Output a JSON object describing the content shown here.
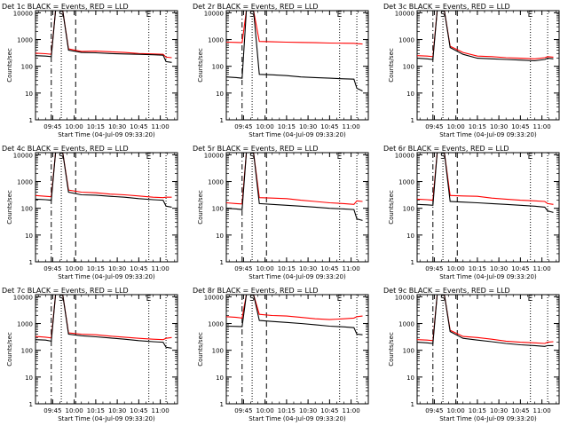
{
  "colors": {
    "events": "#000000",
    "lld": "#ff0000",
    "axis": "#000000",
    "background": "#ffffff"
  },
  "common": {
    "xlabel": "Start Time (04-Jul-09 09:33:20)",
    "ylabel": "Counts/sec",
    "xticks": [
      "09:45",
      "10:00",
      "10:15",
      "10:30",
      "10:45",
      "11:00"
    ],
    "yticks": [
      "1",
      "10",
      "100",
      "1000",
      "10000"
    ],
    "markers": [
      "S",
      "E"
    ]
  },
  "chart_data": [
    {
      "type": "line",
      "title": "Det 1c BLACK = Events, RED = LLD",
      "xlabel": "Start Time (04-Jul-09 09:33:20)",
      "ylabel": "Counts/sec",
      "xlim": [
        "09:33",
        "11:12"
      ],
      "ylim": [
        1,
        12000
      ],
      "yscale": "log",
      "x": [
        "09:33",
        "09:40",
        "09:44",
        "09:47",
        "09:52",
        "09:56",
        "10:05",
        "10:15",
        "10:25",
        "10:35",
        "10:45",
        "10:55",
        "11:02",
        "11:04",
        "11:08"
      ],
      "series": [
        {
          "name": "Events",
          "values": [
            250,
            240,
            230,
            12000,
            12000,
            400,
            330,
            320,
            300,
            290,
            280,
            270,
            260,
            150,
            140
          ]
        },
        {
          "name": "LLD",
          "values": [
            310,
            295,
            280,
            12000,
            12000,
            450,
            360,
            370,
            350,
            330,
            300,
            290,
            280,
            220,
            210
          ]
        }
      ]
    },
    {
      "type": "line",
      "title": "Det 2r BLACK = Events, RED = LLD",
      "xlabel": "Start Time (04-Jul-09 09:33:20)",
      "ylabel": "Counts/sec",
      "xlim": [
        "09:33",
        "11:12"
      ],
      "ylim": [
        1,
        12000
      ],
      "yscale": "log",
      "x": [
        "09:33",
        "09:40",
        "09:44",
        "09:47",
        "09:52",
        "09:56",
        "10:05",
        "10:15",
        "10:25",
        "10:35",
        "10:45",
        "10:55",
        "11:02",
        "11:04",
        "11:08"
      ],
      "series": [
        {
          "name": "Events",
          "values": [
            40,
            38,
            36,
            12000,
            12000,
            50,
            48,
            45,
            40,
            38,
            36,
            34,
            33,
            15,
            12
          ]
        },
        {
          "name": "LLD",
          "values": [
            800,
            780,
            760,
            12000,
            12000,
            850,
            820,
            800,
            780,
            760,
            740,
            730,
            720,
            700,
            680
          ]
        }
      ]
    },
    {
      "type": "line",
      "title": "Det 3c BLACK = Events, RED = LLD",
      "xlabel": "Start Time (04-Jul-09 09:33:20)",
      "ylabel": "Counts/sec",
      "xlim": [
        "09:33",
        "11:12"
      ],
      "ylim": [
        1,
        12000
      ],
      "yscale": "log",
      "x": [
        "09:33",
        "09:40",
        "09:44",
        "09:47",
        "09:52",
        "09:56",
        "10:05",
        "10:15",
        "10:25",
        "10:35",
        "10:45",
        "10:55",
        "11:02",
        "11:04",
        "11:08"
      ],
      "series": [
        {
          "name": "Events",
          "values": [
            200,
            190,
            180,
            12000,
            12000,
            500,
            280,
            200,
            190,
            180,
            170,
            160,
            180,
            200,
            190
          ]
        },
        {
          "name": "LLD",
          "values": [
            250,
            240,
            230,
            12000,
            12000,
            560,
            330,
            240,
            230,
            210,
            200,
            190,
            210,
            230,
            220
          ]
        }
      ]
    },
    {
      "type": "line",
      "title": "Det 4c BLACK = Events, RED = LLD",
      "xlabel": "Start Time (04-Jul-09 09:33:20)",
      "ylabel": "Counts/sec",
      "xlim": [
        "09:33",
        "11:12"
      ],
      "ylim": [
        1,
        12000
      ],
      "yscale": "log",
      "x": [
        "09:33",
        "09:40",
        "09:44",
        "09:47",
        "09:52",
        "09:56",
        "10:05",
        "10:15",
        "10:25",
        "10:35",
        "10:45",
        "10:55",
        "11:02",
        "11:04",
        "11:08"
      ],
      "series": [
        {
          "name": "Events",
          "values": [
            220,
            210,
            200,
            12000,
            12000,
            400,
            320,
            310,
            280,
            260,
            230,
            210,
            200,
            120,
            110
          ]
        },
        {
          "name": "LLD",
          "values": [
            300,
            280,
            270,
            12000,
            12000,
            480,
            400,
            380,
            340,
            320,
            290,
            260,
            250,
            260,
            260
          ]
        }
      ]
    },
    {
      "type": "line",
      "title": "Det 5r BLACK = Events, RED = LLD",
      "xlabel": "Start Time (04-Jul-09 09:33:20)",
      "ylabel": "Counts/sec",
      "xlim": [
        "09:33",
        "11:12"
      ],
      "ylim": [
        1,
        12000
      ],
      "yscale": "log",
      "x": [
        "09:33",
        "09:40",
        "09:44",
        "09:47",
        "09:52",
        "09:56",
        "10:05",
        "10:15",
        "10:25",
        "10:35",
        "10:45",
        "10:55",
        "11:02",
        "11:04",
        "11:08"
      ],
      "series": [
        {
          "name": "Events",
          "values": [
            100,
            95,
            90,
            12000,
            12000,
            150,
            140,
            130,
            120,
            110,
            100,
            95,
            90,
            40,
            35
          ]
        },
        {
          "name": "LLD",
          "values": [
            160,
            150,
            145,
            12000,
            12000,
            250,
            240,
            230,
            200,
            180,
            160,
            150,
            140,
            190,
            180
          ]
        }
      ]
    },
    {
      "type": "line",
      "title": "Det 6r BLACK = Events, RED = LLD",
      "xlabel": "Start Time (04-Jul-09 09:33:20)",
      "ylabel": "Counts/sec",
      "xlim": [
        "09:33",
        "11:12"
      ],
      "ylim": [
        1,
        12000
      ],
      "yscale": "log",
      "x": [
        "09:33",
        "09:40",
        "09:44",
        "09:47",
        "09:52",
        "09:56",
        "10:05",
        "10:15",
        "10:25",
        "10:35",
        "10:45",
        "10:55",
        "11:02",
        "11:04",
        "11:08"
      ],
      "series": [
        {
          "name": "Events",
          "values": [
            140,
            135,
            130,
            12000,
            12000,
            180,
            170,
            160,
            150,
            140,
            130,
            120,
            110,
            80,
            70
          ]
        },
        {
          "name": "LLD",
          "values": [
            220,
            210,
            200,
            12000,
            12000,
            300,
            290,
            280,
            240,
            220,
            200,
            190,
            180,
            150,
            140
          ]
        }
      ]
    },
    {
      "type": "line",
      "title": "Det 7c BLACK = Events, RED = LLD",
      "xlabel": "Start Time (04-Jul-09 09:33:20)",
      "ylabel": "Counts/sec",
      "xlim": [
        "09:33",
        "11:12"
      ],
      "ylim": [
        1,
        12000
      ],
      "yscale": "log",
      "x": [
        "09:33",
        "09:40",
        "09:44",
        "09:47",
        "09:52",
        "09:56",
        "10:05",
        "10:15",
        "10:25",
        "10:35",
        "10:45",
        "10:55",
        "11:02",
        "11:04",
        "11:08"
      ],
      "series": [
        {
          "name": "Events",
          "values": [
            250,
            240,
            220,
            12000,
            12000,
            400,
            350,
            320,
            290,
            260,
            230,
            210,
            200,
            130,
            120
          ]
        },
        {
          "name": "LLD",
          "values": [
            330,
            310,
            290,
            12000,
            12000,
            450,
            400,
            380,
            340,
            310,
            280,
            260,
            250,
            280,
            300
          ]
        }
      ]
    },
    {
      "type": "line",
      "title": "Det 8r BLACK = Events, RED = LLD",
      "xlabel": "Start Time (04-Jul-09 09:33:20)",
      "ylabel": "Counts/sec",
      "xlim": [
        "09:33",
        "11:12"
      ],
      "ylim": [
        1,
        12000
      ],
      "yscale": "log",
      "x": [
        "09:33",
        "09:40",
        "09:44",
        "09:47",
        "09:52",
        "09:56",
        "10:05",
        "10:15",
        "10:25",
        "10:35",
        "10:45",
        "10:55",
        "11:02",
        "11:04",
        "11:08"
      ],
      "series": [
        {
          "name": "Events",
          "values": [
            800,
            780,
            760,
            12000,
            12000,
            1300,
            1200,
            1100,
            1000,
            900,
            800,
            750,
            700,
            400,
            380
          ]
        },
        {
          "name": "LLD",
          "values": [
            1800,
            1700,
            1600,
            12000,
            12000,
            2200,
            2000,
            1900,
            1700,
            1500,
            1400,
            1500,
            1600,
            1800,
            1900
          ]
        }
      ]
    },
    {
      "type": "line",
      "title": "Det 9c BLACK = Events, RED = LLD",
      "xlabel": "Start Time (04-Jul-09 09:33:20)",
      "ylabel": "Counts/sec",
      "xlim": [
        "09:33",
        "11:12"
      ],
      "ylim": [
        1,
        12000
      ],
      "yscale": "log",
      "x": [
        "09:33",
        "09:40",
        "09:44",
        "09:47",
        "09:52",
        "09:56",
        "10:05",
        "10:15",
        "10:25",
        "10:35",
        "10:45",
        "10:55",
        "11:02",
        "11:04",
        "11:08"
      ],
      "series": [
        {
          "name": "Events",
          "values": [
            200,
            190,
            180,
            12000,
            12000,
            500,
            280,
            240,
            210,
            180,
            160,
            150,
            140,
            150,
            150
          ]
        },
        {
          "name": "LLD",
          "values": [
            250,
            240,
            230,
            12000,
            12000,
            560,
            330,
            300,
            260,
            220,
            200,
            190,
            180,
            200,
            210
          ]
        }
      ]
    }
  ]
}
